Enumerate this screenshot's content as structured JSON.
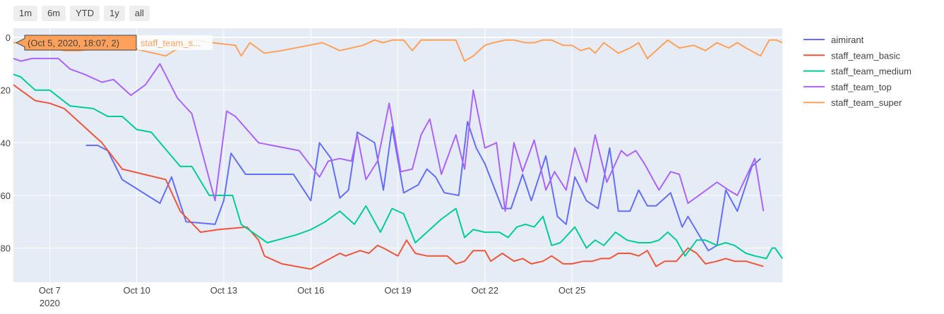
{
  "range_buttons": [
    "1m",
    "6m",
    "YTD",
    "1y",
    "all"
  ],
  "hover": {
    "label": "(Oct 5, 2020, 18:07, 2)",
    "series_name": "staff_team_s...",
    "x": 0.75,
    "y": 2,
    "color": "#FFA15A"
  },
  "chart_data": {
    "type": "line",
    "x_axis": {
      "range": [
        0.75,
        27.25
      ],
      "ticks": [
        {
          "x": 2,
          "label": "Oct 7",
          "sublabel": "2020"
        },
        {
          "x": 5,
          "label": "Oct 10"
        },
        {
          "x": 8,
          "label": "Oct 13"
        },
        {
          "x": 11,
          "label": "Oct 16"
        },
        {
          "x": 14,
          "label": "Oct 19"
        },
        {
          "x": 17,
          "label": "Oct 22"
        },
        {
          "x": 20,
          "label": "Oct 25"
        }
      ]
    },
    "y_axis": {
      "reversed": true,
      "range": [
        -3.5,
        93
      ],
      "ticks": [
        0,
        20,
        40,
        60,
        80
      ],
      "grid": true
    },
    "legend_position": "top-right",
    "series": [
      {
        "name": "aimirant",
        "color": "#636EFA",
        "points": [
          [
            3.25,
            41
          ],
          [
            3.65,
            41
          ],
          [
            4.0,
            43
          ],
          [
            4.5,
            54
          ],
          [
            5.8,
            63
          ],
          [
            6.2,
            53
          ],
          [
            6.7,
            70
          ],
          [
            7.7,
            71
          ],
          [
            8.0,
            62
          ],
          [
            8.25,
            44
          ],
          [
            8.75,
            52
          ],
          [
            10.0,
            52
          ],
          [
            10.4,
            52
          ],
          [
            11.0,
            62
          ],
          [
            11.3,
            40
          ],
          [
            11.7,
            46
          ],
          [
            12.0,
            61
          ],
          [
            12.3,
            58
          ],
          [
            12.6,
            36
          ],
          [
            13.2,
            40
          ],
          [
            13.5,
            58
          ],
          [
            13.8,
            34
          ],
          [
            14.2,
            59
          ],
          [
            14.7,
            56
          ],
          [
            15.0,
            50
          ],
          [
            15.3,
            53
          ],
          [
            15.6,
            59
          ],
          [
            16.1,
            60
          ],
          [
            16.4,
            32
          ],
          [
            16.7,
            42
          ],
          [
            17.0,
            48
          ],
          [
            17.6,
            65
          ],
          [
            17.9,
            65
          ],
          [
            18.3,
            52
          ],
          [
            18.6,
            62
          ],
          [
            19.1,
            45
          ],
          [
            19.5,
            68
          ],
          [
            19.8,
            71
          ],
          [
            20.1,
            53
          ],
          [
            20.5,
            62
          ],
          [
            20.9,
            65
          ],
          [
            21.3,
            42
          ],
          [
            21.6,
            66
          ],
          [
            22.0,
            66
          ],
          [
            22.3,
            58
          ],
          [
            22.6,
            64
          ],
          [
            22.9,
            64
          ],
          [
            23.4,
            59
          ],
          [
            23.8,
            72
          ],
          [
            24.0,
            68
          ],
          [
            24.7,
            81
          ],
          [
            25.0,
            79
          ],
          [
            25.3,
            58
          ],
          [
            25.7,
            66
          ],
          [
            26.2,
            49
          ],
          [
            26.5,
            46
          ]
        ]
      },
      {
        "name": "staff_team_basic",
        "color": "#EF553B",
        "points": [
          [
            0.75,
            18
          ],
          [
            1.0,
            20
          ],
          [
            1.5,
            24
          ],
          [
            2.0,
            25
          ],
          [
            2.5,
            27
          ],
          [
            3.8,
            40
          ],
          [
            4.5,
            50
          ],
          [
            6.0,
            54
          ],
          [
            6.5,
            66
          ],
          [
            7.2,
            74
          ],
          [
            7.8,
            73
          ],
          [
            8.8,
            72
          ],
          [
            9.2,
            77
          ],
          [
            9.4,
            83
          ],
          [
            9.8,
            85
          ],
          [
            10.0,
            86
          ],
          [
            11.0,
            88
          ],
          [
            12.0,
            82
          ],
          [
            12.2,
            83
          ],
          [
            12.7,
            81
          ],
          [
            13.0,
            82
          ],
          [
            13.3,
            79
          ],
          [
            13.5,
            80
          ],
          [
            14.0,
            83
          ],
          [
            14.3,
            77
          ],
          [
            14.6,
            82
          ],
          [
            15.0,
            83
          ],
          [
            15.3,
            83
          ],
          [
            15.7,
            83
          ],
          [
            16.0,
            86
          ],
          [
            16.3,
            85
          ],
          [
            16.6,
            81
          ],
          [
            17.0,
            81
          ],
          [
            17.2,
            85
          ],
          [
            17.6,
            82
          ],
          [
            18.0,
            85
          ],
          [
            18.3,
            84
          ],
          [
            18.6,
            86
          ],
          [
            19.0,
            85
          ],
          [
            19.3,
            83
          ],
          [
            19.7,
            86
          ],
          [
            20.0,
            86
          ],
          [
            20.4,
            85
          ],
          [
            20.7,
            85
          ],
          [
            21.0,
            84
          ],
          [
            21.3,
            84
          ],
          [
            21.6,
            82
          ],
          [
            22.0,
            82
          ],
          [
            22.3,
            83
          ],
          [
            22.6,
            81
          ],
          [
            22.9,
            87
          ],
          [
            23.2,
            85
          ],
          [
            23.6,
            85
          ],
          [
            24.0,
            80
          ],
          [
            24.3,
            82
          ],
          [
            24.6,
            86
          ],
          [
            25.0,
            85
          ],
          [
            25.3,
            84
          ],
          [
            25.6,
            85
          ],
          [
            26.0,
            85
          ],
          [
            26.3,
            86
          ],
          [
            26.6,
            87
          ]
        ]
      },
      {
        "name": "staff_team_medium",
        "color": "#00CC96",
        "points": [
          [
            0.75,
            14
          ],
          [
            1.0,
            15
          ],
          [
            1.5,
            20
          ],
          [
            2.0,
            20
          ],
          [
            2.7,
            26
          ],
          [
            3.5,
            27
          ],
          [
            4.0,
            30
          ],
          [
            4.5,
            30
          ],
          [
            5.0,
            35
          ],
          [
            5.5,
            36
          ],
          [
            6.5,
            49
          ],
          [
            6.9,
            49
          ],
          [
            7.5,
            60
          ],
          [
            8.0,
            60
          ],
          [
            8.3,
            60
          ],
          [
            8.6,
            71
          ],
          [
            9.5,
            78
          ],
          [
            10.5,
            75
          ],
          [
            11.0,
            73
          ],
          [
            11.5,
            70
          ],
          [
            12.0,
            66
          ],
          [
            12.5,
            71
          ],
          [
            12.9,
            64
          ],
          [
            13.4,
            74
          ],
          [
            13.8,
            65
          ],
          [
            14.2,
            67
          ],
          [
            14.6,
            78
          ],
          [
            15.0,
            74
          ],
          [
            15.5,
            69
          ],
          [
            16.0,
            65
          ],
          [
            16.3,
            76
          ],
          [
            16.6,
            73
          ],
          [
            17.0,
            74
          ],
          [
            17.5,
            74
          ],
          [
            17.8,
            76
          ],
          [
            18.1,
            72
          ],
          [
            18.4,
            71
          ],
          [
            18.7,
            72
          ],
          [
            19.0,
            68
          ],
          [
            19.3,
            79
          ],
          [
            19.6,
            78
          ],
          [
            20.1,
            72
          ],
          [
            20.5,
            80
          ],
          [
            20.8,
            77
          ],
          [
            21.1,
            79
          ],
          [
            21.5,
            74
          ],
          [
            21.9,
            77
          ],
          [
            22.3,
            78
          ],
          [
            22.7,
            78
          ],
          [
            23.0,
            77
          ],
          [
            23.3,
            74
          ],
          [
            23.6,
            77
          ],
          [
            23.9,
            83
          ],
          [
            24.3,
            77
          ],
          [
            24.6,
            77
          ],
          [
            25.0,
            79
          ],
          [
            25.3,
            78
          ],
          [
            25.6,
            79
          ],
          [
            26.0,
            82
          ],
          [
            26.3,
            83
          ],
          [
            26.7,
            84
          ],
          [
            26.9,
            80
          ],
          [
            27.0,
            80
          ],
          [
            27.25,
            84
          ]
        ]
      },
      {
        "name": "staff_team_top",
        "color": "#AB63FA",
        "points": [
          [
            0.75,
            8
          ],
          [
            1.0,
            9
          ],
          [
            1.4,
            8
          ],
          [
            2.0,
            8
          ],
          [
            2.3,
            8
          ],
          [
            2.7,
            12
          ],
          [
            3.2,
            14
          ],
          [
            3.8,
            17
          ],
          [
            4.2,
            16
          ],
          [
            4.8,
            22
          ],
          [
            5.3,
            18
          ],
          [
            5.8,
            10
          ],
          [
            6.4,
            23
          ],
          [
            6.9,
            29
          ],
          [
            7.7,
            62
          ],
          [
            8.1,
            28
          ],
          [
            8.4,
            30
          ],
          [
            9.2,
            40
          ],
          [
            10.6,
            43
          ],
          [
            11.3,
            53
          ],
          [
            11.6,
            47
          ],
          [
            12.0,
            46
          ],
          [
            12.4,
            47
          ],
          [
            12.6,
            37
          ],
          [
            12.9,
            54
          ],
          [
            13.3,
            47
          ],
          [
            13.7,
            25
          ],
          [
            14.1,
            51
          ],
          [
            14.5,
            50
          ],
          [
            14.8,
            37
          ],
          [
            15.1,
            31
          ],
          [
            15.5,
            52
          ],
          [
            16.0,
            37
          ],
          [
            16.3,
            50
          ],
          [
            16.6,
            20
          ],
          [
            17.0,
            42
          ],
          [
            17.4,
            40
          ],
          [
            17.7,
            66
          ],
          [
            18.0,
            40
          ],
          [
            18.3,
            51
          ],
          [
            18.7,
            39
          ],
          [
            19.1,
            58
          ],
          [
            19.4,
            51
          ],
          [
            19.8,
            58
          ],
          [
            20.1,
            42
          ],
          [
            20.5,
            55
          ],
          [
            20.8,
            37
          ],
          [
            21.2,
            55
          ],
          [
            21.7,
            43
          ],
          [
            21.9,
            45
          ],
          [
            22.2,
            43
          ],
          [
            22.5,
            48
          ],
          [
            23.0,
            58
          ],
          [
            23.4,
            51
          ],
          [
            23.7,
            52
          ],
          [
            24.0,
            63
          ],
          [
            24.5,
            59
          ],
          [
            25.0,
            55
          ],
          [
            25.4,
            58
          ],
          [
            25.7,
            60
          ],
          [
            26.3,
            46
          ],
          [
            26.6,
            66
          ]
        ]
      },
      {
        "name": "staff_team_super",
        "color": "#FFA15A",
        "points": [
          [
            0.75,
            2
          ],
          [
            1.0,
            2
          ],
          [
            1.5,
            2
          ],
          [
            2.0,
            4
          ],
          [
            2.5,
            5
          ],
          [
            3.0,
            5
          ],
          [
            3.8,
            4
          ],
          [
            4.8,
            4
          ],
          [
            6.0,
            7
          ],
          [
            6.6,
            3
          ],
          [
            7.0,
            1
          ],
          [
            7.6,
            2
          ],
          [
            8.4,
            3
          ],
          [
            8.6,
            7
          ],
          [
            8.9,
            2
          ],
          [
            9.4,
            6
          ],
          [
            10.0,
            5
          ],
          [
            11.4,
            2
          ],
          [
            12.0,
            5
          ],
          [
            12.4,
            4
          ],
          [
            12.8,
            3
          ],
          [
            13.2,
            1
          ],
          [
            13.5,
            2
          ],
          [
            13.8,
            1
          ],
          [
            14.2,
            1
          ],
          [
            14.5,
            5
          ],
          [
            14.8,
            1
          ],
          [
            15.2,
            1
          ],
          [
            15.5,
            1
          ],
          [
            16.0,
            1
          ],
          [
            16.3,
            9
          ],
          [
            16.6,
            7
          ],
          [
            17.0,
            3
          ],
          [
            17.3,
            2
          ],
          [
            17.7,
            1
          ],
          [
            18.0,
            1
          ],
          [
            18.4,
            2
          ],
          [
            18.7,
            2
          ],
          [
            19.0,
            1
          ],
          [
            19.3,
            1
          ],
          [
            19.7,
            3
          ],
          [
            20.0,
            3
          ],
          [
            20.3,
            5
          ],
          [
            20.6,
            4
          ],
          [
            20.8,
            6
          ],
          [
            21.1,
            2
          ],
          [
            21.6,
            6
          ],
          [
            22.0,
            4
          ],
          [
            22.3,
            2
          ],
          [
            22.6,
            8
          ],
          [
            23.0,
            4
          ],
          [
            23.3,
            1
          ],
          [
            23.7,
            4
          ],
          [
            24.2,
            3
          ],
          [
            24.6,
            5
          ],
          [
            25.0,
            2
          ],
          [
            25.4,
            4
          ],
          [
            25.7,
            2
          ],
          [
            26.0,
            4
          ],
          [
            26.5,
            7
          ],
          [
            26.8,
            1
          ],
          [
            27.05,
            1
          ],
          [
            27.25,
            2
          ]
        ]
      }
    ]
  }
}
